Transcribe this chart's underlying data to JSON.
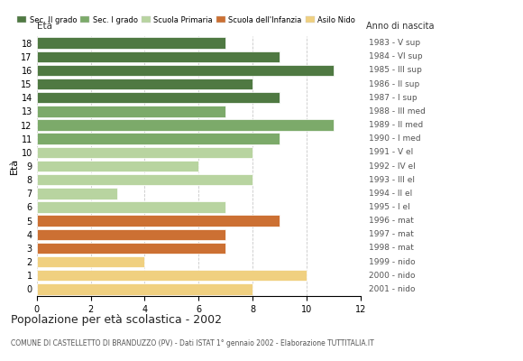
{
  "ages": [
    18,
    17,
    16,
    15,
    14,
    13,
    12,
    11,
    10,
    9,
    8,
    7,
    6,
    5,
    4,
    3,
    2,
    1,
    0
  ],
  "values": [
    7,
    9,
    11,
    8,
    9,
    7,
    11,
    9,
    8,
    6,
    8,
    3,
    7,
    9,
    7,
    7,
    4,
    10,
    8
  ],
  "right_labels": [
    "1983 - V sup",
    "1984 - VI sup",
    "1985 - III sup",
    "1986 - II sup",
    "1987 - I sup",
    "1988 - III med",
    "1989 - II med",
    "1990 - I med",
    "1991 - V el",
    "1992 - IV el",
    "1993 - III el",
    "1994 - II el",
    "1995 - I el",
    "1996 - mat",
    "1997 - mat",
    "1998 - mat",
    "1999 - nido",
    "2000 - nido",
    "2001 - nido"
  ],
  "categories": {
    "Sec. II grado": {
      "ages": [
        18,
        17,
        16,
        15,
        14
      ],
      "color": "#4f7942"
    },
    "Sec. I grado": {
      "ages": [
        13,
        12,
        11
      ],
      "color": "#7caa6a"
    },
    "Scuola Primaria": {
      "ages": [
        10,
        9,
        8,
        7,
        6
      ],
      "color": "#b8d4a0"
    },
    "Scuola dell'Infanzia": {
      "ages": [
        5,
        4,
        3
      ],
      "color": "#cc7033"
    },
    "Asilo Nido": {
      "ages": [
        2,
        1,
        0
      ],
      "color": "#f0d080"
    }
  },
  "legend_colors": {
    "Sec. II grado": "#4f7942",
    "Sec. I grado": "#7caa6a",
    "Scuola Primaria": "#b8d4a0",
    "Scuola dell'Infanzia": "#cc7033",
    "Asilo Nido": "#f0d080"
  },
  "ylabel": "Età",
  "xlim": [
    0,
    12
  ],
  "xticks": [
    0,
    2,
    4,
    6,
    8,
    10,
    12
  ],
  "title": "Popolazione per età scolastica - 2002",
  "subtitle": "COMUNE DI CASTELLETTO DI BRANDUZZO (PV) - Dati ISTAT 1° gennaio 2002 - Elaborazione TUTTITALIA.IT",
  "right_axis_label": "Anno di nascita",
  "background_color": "#ffffff",
  "bar_height": 0.82,
  "grid_color": "#bbbbbb"
}
